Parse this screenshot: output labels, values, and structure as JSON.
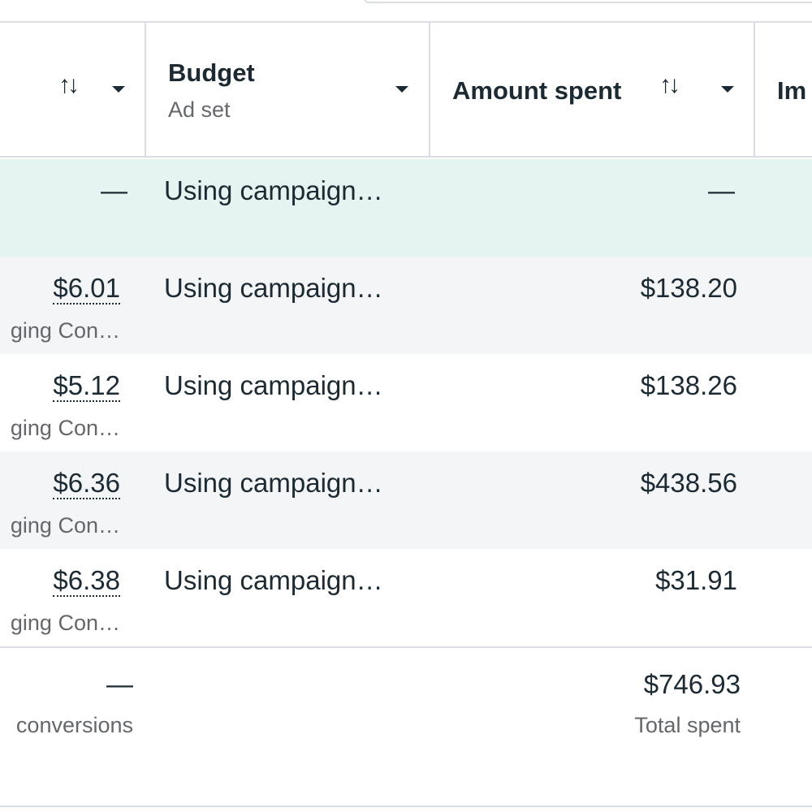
{
  "header": {
    "budget_title": "Budget",
    "budget_sub": "Ad set",
    "amount_title": "Amount spent",
    "next_col_fragment": "Im",
    "sort_glyph": "↑↓"
  },
  "rows": [
    {
      "cost": "—",
      "cost_sub": "",
      "budget": "Using campaign…",
      "amount": "—"
    },
    {
      "cost": "$6.01",
      "cost_sub": "ging Con…",
      "budget": "Using campaign…",
      "amount": "$138.20"
    },
    {
      "cost": "$5.12",
      "cost_sub": "ging Con…",
      "budget": "Using campaign…",
      "amount": "$138.26"
    },
    {
      "cost": "$6.36",
      "cost_sub": "ging Con…",
      "budget": "Using campaign…",
      "amount": "$438.56"
    },
    {
      "cost": "$6.38",
      "cost_sub": "ging Con…",
      "budget": "Using campaign…",
      "amount": "$31.91"
    }
  ],
  "totals": {
    "cost": "—",
    "cost_sub": "conversions",
    "amount": "$746.93",
    "amount_sub": "Total spent"
  },
  "icons": {
    "sort": "sort-arrows-icon",
    "caret": "caret-down-icon"
  }
}
